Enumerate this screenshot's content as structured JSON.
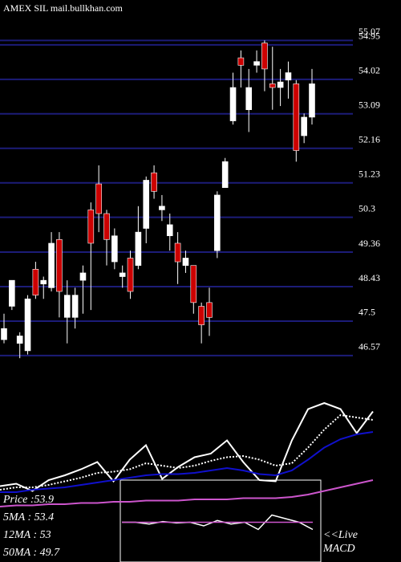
{
  "chart_data": [
    {
      "type": "candlestick",
      "title": "AMEX  SIL mail.bullkhan.com",
      "ylim": [
        46.2,
        56.16
      ],
      "yticks": [
        46.57,
        47.5,
        48.43,
        49.36,
        50.3,
        51.23,
        52.16,
        53.09,
        54.02,
        54.95,
        55.07
      ],
      "grid": true,
      "up_color": "#ffffff",
      "down_color": "#cc0000",
      "open": [
        47.0,
        47.9,
        46.9,
        46.7,
        48.9,
        48.5,
        48.4,
        49.7,
        47.6,
        47.6,
        48.6,
        50.5,
        51.2,
        50.4,
        49.1,
        48.7,
        49.2,
        49.0,
        50.0,
        51.5,
        50.5,
        49.8,
        49.6,
        49.0,
        49.0,
        47.9,
        48.0,
        49.4,
        51.1,
        52.9,
        54.6,
        53.2,
        54.4,
        55.0,
        53.9,
        53.8,
        54.0,
        53.9,
        52.5,
        53.0
      ],
      "high": [
        47.7,
        48.6,
        47.2,
        48.2,
        49.1,
        48.7,
        49.9,
        49.9,
        48.6,
        48.4,
        49.0,
        50.7,
        51.7,
        50.5,
        50.0,
        49.0,
        49.4,
        50.6,
        51.4,
        51.7,
        50.9,
        50.4,
        49.9,
        49.4,
        49.0,
        48.0,
        48.4,
        51.0,
        51.9,
        54.2,
        54.8,
        54.3,
        54.8,
        55.07,
        54.9,
        54.3,
        54.5,
        54.0,
        53.1,
        54.3
      ],
      "low": [
        46.9,
        47.8,
        46.5,
        46.6,
        48.1,
        48.1,
        48.3,
        47.6,
        46.9,
        47.3,
        47.7,
        47.8,
        49.9,
        49.0,
        48.9,
        48.4,
        48.1,
        48.9,
        49.6,
        50.8,
        50.2,
        49.4,
        48.5,
        48.8,
        47.7,
        46.9,
        47.1,
        49.2,
        51.1,
        52.8,
        53.8,
        52.6,
        54.2,
        53.7,
        53.2,
        53.3,
        53.5,
        51.8,
        52.3,
        52.8
      ],
      "close": [
        47.3,
        48.6,
        47.1,
        48.1,
        48.2,
        48.6,
        49.6,
        48.3,
        48.2,
        48.2,
        48.8,
        49.6,
        50.4,
        49.7,
        49.8,
        48.8,
        48.3,
        49.9,
        51.3,
        51.0,
        50.6,
        50.1,
        49.1,
        49.2,
        48.0,
        47.4,
        47.6,
        50.9,
        51.8,
        53.8,
        54.4,
        53.8,
        54.5,
        54.3,
        53.8,
        53.95,
        54.2,
        52.1,
        53.0,
        53.9
      ]
    },
    {
      "type": "line",
      "ylim": [
        0,
        100
      ],
      "series": [
        {
          "name": "Price",
          "color": "#ffffff",
          "dash": false,
          "values": [
            23,
            25,
            19,
            28,
            32,
            37,
            43,
            27,
            45,
            57,
            29,
            39,
            47,
            50,
            61,
            43,
            28,
            27,
            61,
            87,
            92,
            87,
            67,
            85
          ]
        },
        {
          "name": "5MA",
          "color": "#ffffff",
          "dash": true,
          "values": [
            20,
            22,
            22,
            24,
            27,
            30,
            34,
            35,
            37,
            42,
            40,
            38,
            40,
            44,
            47,
            48,
            45,
            40,
            42,
            55,
            70,
            82,
            80,
            78
          ]
        },
        {
          "name": "12MA",
          "color": "#1010cc",
          "dash": false,
          "values": [
            18,
            18,
            20,
            21,
            22,
            24,
            26,
            28,
            30,
            32,
            33,
            33,
            34,
            36,
            38,
            36,
            33,
            32,
            36,
            45,
            55,
            62,
            66,
            68
          ]
        },
        {
          "name": "50MA",
          "color": "#cc55cc",
          "dash": false,
          "values": [
            6,
            7,
            7,
            8,
            8,
            9,
            9,
            10,
            10,
            11,
            11,
            11,
            12,
            12,
            12,
            13,
            13,
            13,
            14,
            16,
            19,
            22,
            25,
            28
          ]
        }
      ],
      "readout": [
        {
          "label": "Price  :",
          "value": 53.9
        },
        {
          "label": "5MA : ",
          "value": 53.4
        },
        {
          "label": "12MA : ",
          "value": 53
        },
        {
          "label": "50MA : ",
          "value": 49.7
        }
      ]
    },
    {
      "type": "line",
      "title": "MACD",
      "note": "<<Live",
      "ylim": [
        -1,
        1
      ],
      "series": [
        {
          "color": "#ffffff",
          "dash": false,
          "values": [
            0.1,
            0.1,
            0.05,
            0.12,
            0.08,
            0.1,
            0.0,
            0.15,
            0.05,
            0.1,
            -0.1,
            0.3,
            0.2,
            0.1,
            -0.1
          ]
        },
        {
          "color": "#cc55cc",
          "dash": false,
          "values": [
            0.1,
            0.1,
            0.1,
            0.1,
            0.1,
            0.1,
            0.1,
            0.1,
            0.1,
            0.1,
            0.1,
            0.1,
            0.1,
            0.1,
            0.1
          ]
        }
      ]
    }
  ]
}
